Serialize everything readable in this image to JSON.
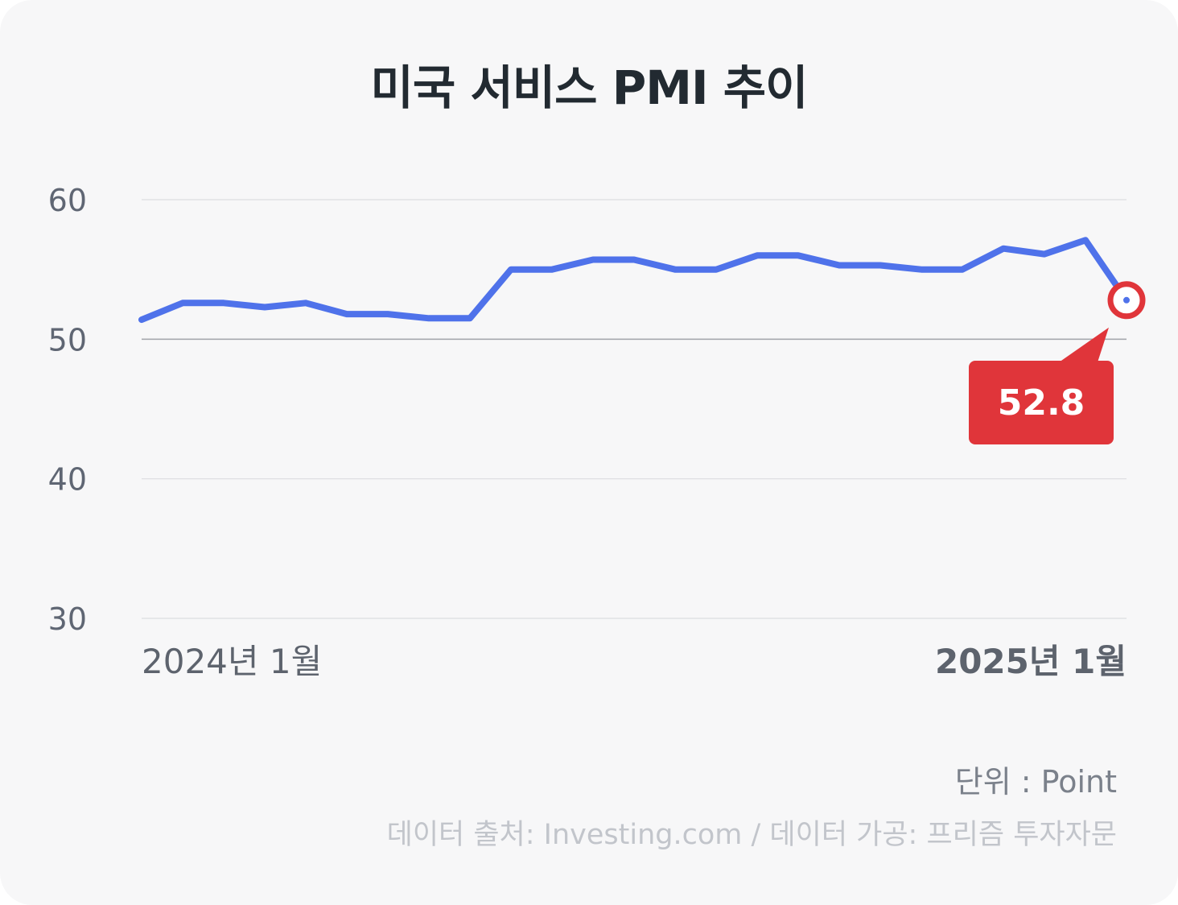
{
  "title": "미국 서비스 PMI 추이",
  "unit_label": "단위 : Point",
  "source_label": "데이터 출처: Investing.com / 데이터 가공: 프리즘 투자자문",
  "colors": {
    "line": "#4f72ea",
    "highlight": "#e0353a",
    "grid": "#dcdde0",
    "grid_emphasis": "#a7a9ae",
    "background": "#f7f7f8"
  },
  "chart_data": {
    "type": "line",
    "title": "미국 서비스 PMI 추이",
    "ylabel": "",
    "xlabel": "",
    "ylim": [
      30,
      60
    ],
    "yticks": [
      60,
      50,
      40,
      30
    ],
    "x_tick_labels": [
      {
        "index": 0,
        "label": "2024년 1월"
      },
      {
        "index": 24,
        "label": "2025년 1월"
      }
    ],
    "values": [
      51.4,
      52.6,
      52.6,
      52.3,
      52.6,
      51.8,
      51.8,
      51.5,
      51.5,
      55.0,
      55.0,
      55.7,
      55.7,
      55.0,
      55.0,
      56.0,
      56.0,
      55.3,
      55.3,
      55.0,
      55.0,
      56.5,
      56.1,
      57.1,
      52.8
    ],
    "highlight": {
      "index": 24,
      "label": "52.8"
    },
    "emphasis_gridline": 50,
    "grid": true,
    "legend": "none"
  }
}
